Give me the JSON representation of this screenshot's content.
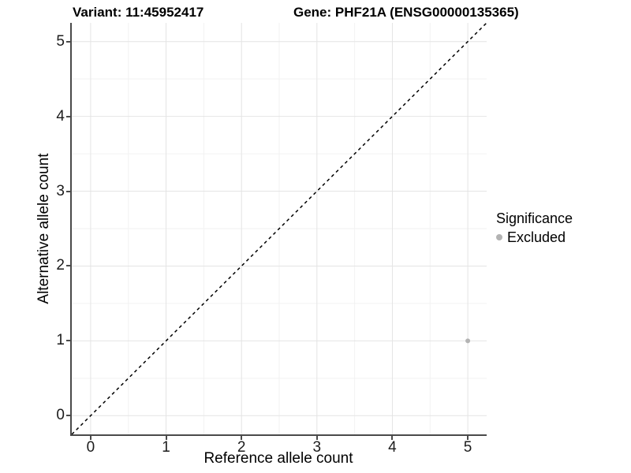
{
  "titles": {
    "variant": "Variant: 11:45952417",
    "gene": "Gene: PHF21A (ENSG00000135365)"
  },
  "legend": {
    "title": "Significance",
    "items": [
      {
        "label": "Excluded",
        "color": "#b3b3b3"
      }
    ]
  },
  "chart_data": {
    "type": "scatter",
    "title": "Variant: 11:45952417 — Gene: PHF21A (ENSG00000135365)",
    "xlabel": "Reference allele count",
    "ylabel": "Alternative allele count",
    "xlim": [
      -0.25,
      5.25
    ],
    "ylim": [
      -0.25,
      5.25
    ],
    "x_ticks": [
      0,
      1,
      2,
      3,
      4,
      5
    ],
    "y_ticks": [
      0,
      1,
      2,
      3,
      4,
      5
    ],
    "grid": {
      "major": true,
      "minor": true
    },
    "legend_position": "right",
    "series": [
      {
        "name": "Excluded",
        "color": "#b3b3b3",
        "marker_radius": 3,
        "points": [
          {
            "x": 5,
            "y": 1
          }
        ]
      }
    ],
    "reference_line": {
      "kind": "identity",
      "from": [
        -0.25,
        -0.25
      ],
      "to": [
        5.25,
        5.25
      ],
      "style": "dashed",
      "color": "#000000"
    }
  },
  "style": {
    "grid_major_color": "#e4e4e4",
    "grid_minor_color": "#f2f2f2",
    "axis_line_color": "#4a4a4a",
    "tick_color": "#4a4a4a",
    "background": "#ffffff"
  }
}
